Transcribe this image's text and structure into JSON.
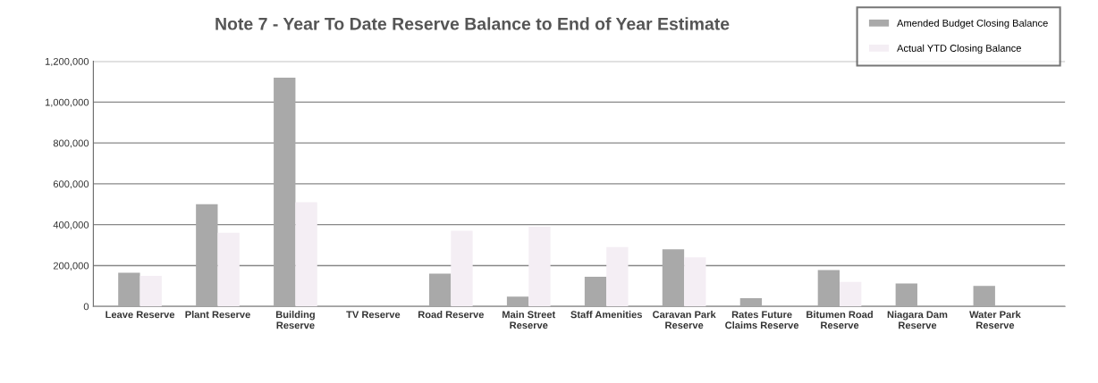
{
  "chart_data": {
    "type": "bar",
    "title": "Note 7 - Year To Date Reserve Balance to End of Year Estimate",
    "categories": [
      "Leave Reserve",
      "Plant Reserve",
      "Building\nReserve",
      "TV Reserve",
      "Road Reserve",
      "Main Street\nReserve",
      "Staff Amenities",
      "Caravan Park\nReserve",
      "Rates Future\nClaims Reserve",
      "Bitumen Road\nReserve",
      "Niagara Dam\nReserve",
      "Water Park\nReserve"
    ],
    "series": [
      {
        "name": "Amended Budget Closing Balance",
        "color": "#a9a9a9",
        "values": [
          165000,
          500000,
          1120000,
          0,
          160000,
          48000,
          145000,
          280000,
          40000,
          178000,
          112000,
          100000
        ]
      },
      {
        "name": "Actual YTD Closing Balance",
        "color": "#f4eef4",
        "values": [
          150000,
          360000,
          510000,
          null,
          370000,
          390000,
          290000,
          240000,
          null,
          120000,
          null,
          null
        ]
      }
    ],
    "ylim": [
      0,
      1200000
    ],
    "yticks": [
      {
        "value": 0,
        "label": "0"
      },
      {
        "value": 200000,
        "label": "200,000"
      },
      {
        "value": 400000,
        "label": "400,000"
      },
      {
        "value": 600000,
        "label": "600,000"
      },
      {
        "value": 800000,
        "label": "800,000"
      },
      {
        "value": 1000000,
        "label": "1,000,000"
      },
      {
        "value": 1200000,
        "label": "1,200,000"
      }
    ],
    "grid": "y",
    "legend": "top right"
  }
}
